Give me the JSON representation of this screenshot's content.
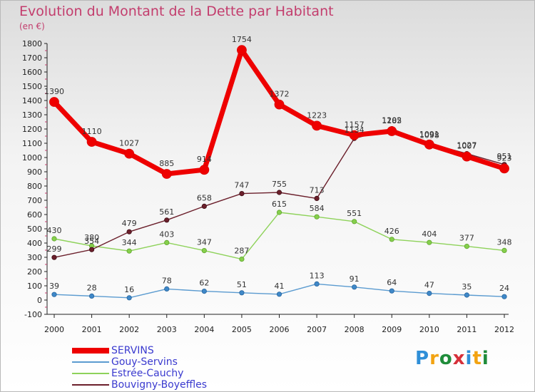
{
  "title": "Evolution du Montant de la Dette par Habitant",
  "unit": "(en €)",
  "logo": {
    "text": "Proxiti",
    "colors": [
      "#2f8fd8",
      "#f2a312",
      "#1f8c3a",
      "#d6303a",
      "#2f8fd8",
      "#f2a312",
      "#1f8c3a"
    ]
  },
  "chart_data": {
    "type": "line",
    "x": [
      "2000",
      "2001",
      "2002",
      "2003",
      "2004",
      "2005",
      "2006",
      "2007",
      "2008",
      "2009",
      "2010",
      "2011",
      "2012"
    ],
    "ylim": [
      -100,
      1800
    ],
    "yticks": [
      -100,
      0,
      100,
      200,
      300,
      400,
      500,
      600,
      700,
      800,
      900,
      1000,
      1100,
      1200,
      1300,
      1400,
      1500,
      1600,
      1700,
      1800
    ],
    "grid": false,
    "legend_position": "bottom-left",
    "series": [
      {
        "name": "SERVINS",
        "color": "#ee0000",
        "values": [
          1390,
          1110,
          1027,
          885,
          914,
          1754,
          1372,
          1223,
          1157,
          1185,
          1091,
          1007,
          923
        ],
        "labels": [
          "1390",
          "1110",
          "1027",
          "885",
          "914",
          "1754",
          "1372",
          "1223",
          "1157",
          "1185",
          "1091",
          "1007",
          "923"
        ]
      },
      {
        "name": "Gouy-Servins",
        "color": "#5b9bd0",
        "values": [
          39,
          28,
          16,
          78,
          62,
          51,
          41,
          113,
          91,
          64,
          47,
          35,
          24
        ],
        "labels": [
          "39",
          "28",
          "16",
          "78",
          "62",
          "51",
          "41",
          "113",
          "91",
          "64",
          "47",
          "35",
          "24"
        ]
      },
      {
        "name": "Estrée-Cauchy",
        "color": "#8ed25a",
        "values": [
          430,
          380,
          344,
          403,
          347,
          287,
          615,
          584,
          551,
          426,
          404,
          377,
          348
        ],
        "labels": [
          "430",
          "380",
          "344",
          "403",
          "347",
          "287",
          "615",
          "584",
          "551",
          "426",
          "404",
          "377",
          "348"
        ]
      },
      {
        "name": "Bouvigny-Boyeffles",
        "color": "#6b1f2b",
        "values": [
          299,
          354,
          479,
          561,
          658,
          747,
          755,
          713,
          1134,
          1202,
          1098,
          1027,
          951
        ],
        "labels": [
          "299",
          "354",
          "479",
          "561",
          "658",
          "747",
          "755",
          "713",
          "1134",
          "1202",
          "1098",
          "1027",
          "951"
        ]
      }
    ]
  }
}
